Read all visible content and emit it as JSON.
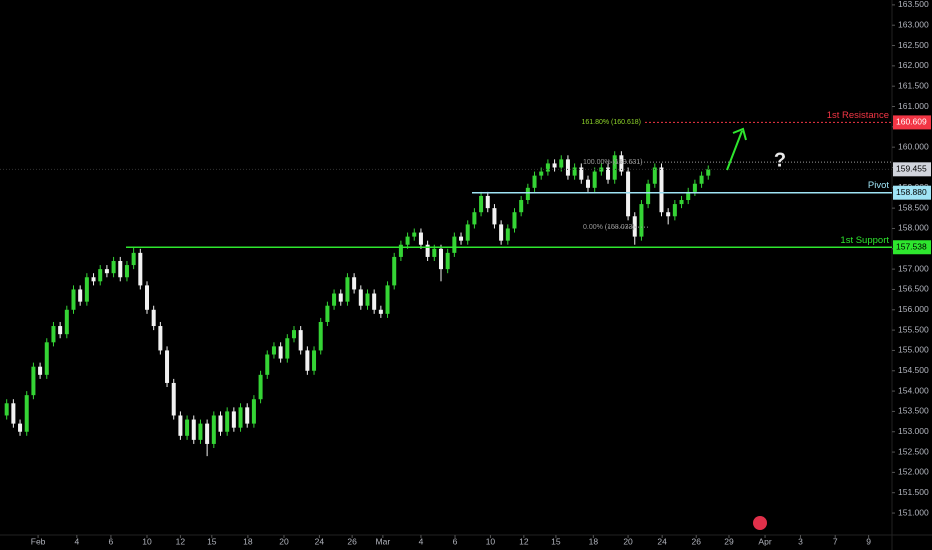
{
  "chart_data": {
    "type": "candlestick",
    "up_color": "#35d435",
    "down_color": "#f2f2f2",
    "open": [
      153.4,
      153.7,
      153.2,
      153.0,
      153.9,
      154.6,
      154.4,
      155.2,
      155.6,
      155.4,
      156.0,
      156.5,
      156.2,
      156.8,
      156.7,
      157.0,
      156.9,
      157.2,
      156.8,
      157.1,
      157.4,
      156.6,
      156.0,
      155.6,
      155.0,
      154.2,
      153.4,
      152.9,
      153.3,
      152.8,
      153.2,
      152.7,
      153.4,
      153.0,
      153.5,
      153.1,
      153.6,
      153.2,
      153.8,
      154.4,
      154.9,
      155.1,
      154.8,
      155.3,
      155.5,
      155.0,
      154.5,
      155.0,
      155.7,
      156.1,
      156.4,
      156.2,
      156.8,
      156.5,
      156.1,
      156.4,
      156.0,
      155.9,
      156.6,
      157.3,
      157.6,
      157.8,
      157.9,
      157.6,
      157.3,
      157.5,
      157.0,
      157.4,
      157.8,
      157.7,
      158.1,
      158.4,
      158.8,
      158.5,
      158.1,
      157.7,
      158.0,
      158.4,
      158.7,
      159.0,
      159.3,
      159.4,
      159.6,
      159.5,
      159.7,
      159.3,
      159.5,
      159.2,
      159.0,
      159.4,
      159.5,
      159.2,
      159.8,
      159.4,
      158.3,
      157.8,
      158.6,
      159.1,
      159.5,
      158.4,
      158.3,
      158.6,
      158.7,
      158.9,
      159.1,
      159.3
    ],
    "high": [
      153.8,
      153.8,
      153.3,
      154.0,
      154.7,
      154.7,
      155.3,
      155.7,
      155.7,
      156.1,
      156.6,
      156.6,
      156.9,
      156.9,
      157.1,
      157.1,
      157.3,
      157.3,
      157.2,
      157.54,
      157.5,
      156.7,
      156.1,
      155.7,
      155.1,
      154.3,
      153.5,
      153.4,
      153.4,
      153.3,
      153.3,
      153.5,
      153.5,
      153.6,
      153.6,
      153.7,
      153.7,
      153.9,
      154.5,
      155.0,
      155.2,
      155.2,
      155.4,
      155.6,
      155.6,
      155.1,
      155.1,
      155.8,
      156.2,
      156.5,
      156.5,
      156.9,
      156.9,
      156.6,
      156.5,
      156.5,
      156.1,
      156.7,
      157.4,
      157.7,
      157.9,
      158.0,
      158.0,
      157.7,
      157.6,
      157.6,
      157.5,
      157.9,
      157.9,
      158.2,
      158.5,
      158.9,
      158.9,
      158.6,
      158.2,
      158.1,
      158.5,
      158.8,
      159.1,
      159.4,
      159.5,
      159.7,
      159.7,
      159.8,
      159.8,
      159.6,
      159.6,
      159.3,
      159.5,
      159.6,
      159.6,
      159.9,
      159.9,
      159.5,
      158.4,
      158.7,
      159.2,
      159.6,
      159.6,
      158.5,
      158.7,
      158.8,
      159.0,
      159.2,
      159.4,
      159.55
    ],
    "low": [
      153.3,
      153.1,
      152.9,
      152.9,
      153.8,
      154.3,
      154.3,
      155.1,
      155.3,
      155.3,
      155.9,
      156.1,
      156.1,
      156.6,
      156.6,
      156.8,
      156.8,
      156.7,
      156.7,
      157.0,
      156.5,
      155.9,
      155.5,
      154.9,
      154.1,
      153.3,
      152.8,
      152.8,
      152.7,
      152.7,
      152.4,
      152.6,
      152.9,
      152.9,
      153.0,
      153.0,
      153.1,
      153.1,
      153.7,
      154.3,
      154.8,
      154.7,
      154.7,
      155.2,
      154.9,
      154.4,
      154.4,
      154.9,
      155.6,
      156.0,
      156.1,
      156.1,
      156.4,
      156.0,
      156.0,
      155.9,
      155.8,
      155.8,
      156.5,
      157.2,
      157.5,
      157.7,
      157.5,
      157.2,
      157.2,
      156.7,
      156.9,
      157.3,
      157.6,
      157.6,
      158.0,
      158.3,
      158.4,
      158.0,
      157.6,
      157.6,
      157.9,
      158.3,
      158.6,
      158.9,
      159.2,
      159.3,
      159.4,
      159.4,
      159.2,
      159.2,
      159.1,
      158.9,
      158.9,
      159.3,
      159.1,
      159.1,
      159.3,
      158.2,
      157.6,
      157.7,
      158.5,
      159.0,
      158.3,
      158.1,
      158.2,
      158.5,
      158.6,
      158.8,
      159.0,
      159.2
    ],
    "close": [
      153.7,
      153.2,
      153.0,
      153.9,
      154.6,
      154.4,
      155.2,
      155.6,
      155.4,
      156.0,
      156.5,
      156.2,
      156.8,
      156.7,
      157.0,
      156.9,
      157.2,
      156.8,
      157.1,
      157.4,
      156.6,
      156.0,
      155.6,
      155.0,
      154.2,
      153.4,
      152.9,
      153.3,
      152.8,
      153.2,
      152.7,
      153.4,
      153.0,
      153.5,
      153.1,
      153.6,
      153.2,
      153.8,
      154.4,
      154.9,
      155.1,
      154.8,
      155.3,
      155.5,
      155.0,
      154.5,
      155.0,
      155.7,
      156.1,
      156.4,
      156.2,
      156.8,
      156.5,
      156.1,
      156.4,
      156.0,
      155.9,
      156.6,
      157.3,
      157.6,
      157.8,
      157.9,
      157.6,
      157.3,
      157.5,
      157.0,
      157.4,
      157.8,
      157.7,
      158.1,
      158.4,
      158.8,
      158.5,
      158.1,
      157.7,
      158.0,
      158.4,
      158.7,
      159.0,
      159.3,
      159.4,
      159.6,
      159.5,
      159.7,
      159.3,
      159.5,
      159.2,
      159.0,
      159.4,
      159.5,
      159.2,
      159.8,
      159.4,
      158.3,
      157.8,
      158.6,
      159.1,
      159.5,
      158.4,
      158.3,
      158.6,
      158.7,
      158.9,
      159.1,
      159.3,
      159.455
    ],
    "xlim": [
      -1,
      132.5
    ],
    "xticks": [
      {
        "value": 4.7,
        "label": "Feb"
      },
      {
        "value": 10.5,
        "label": "4"
      },
      {
        "value": 15.6,
        "label": "6"
      },
      {
        "value": 21,
        "label": "10"
      },
      {
        "value": 26,
        "label": "12"
      },
      {
        "value": 30.7,
        "label": "15"
      },
      {
        "value": 36.1,
        "label": "18"
      },
      {
        "value": 41.5,
        "label": "20"
      },
      {
        "value": 46.8,
        "label": "24"
      },
      {
        "value": 51.7,
        "label": "26"
      },
      {
        "value": 56.3,
        "label": "Mar"
      },
      {
        "value": 62,
        "label": "4"
      },
      {
        "value": 67.1,
        "label": "6"
      },
      {
        "value": 72.4,
        "label": "10"
      },
      {
        "value": 77.4,
        "label": "12"
      },
      {
        "value": 82.2,
        "label": "15"
      },
      {
        "value": 87.8,
        "label": "18"
      },
      {
        "value": 93,
        "label": "20"
      },
      {
        "value": 98.1,
        "label": "24"
      },
      {
        "value": 103.2,
        "label": "26"
      },
      {
        "value": 108.1,
        "label": "29"
      },
      {
        "value": 113.5,
        "label": "Apr"
      },
      {
        "value": 118.8,
        "label": "3"
      },
      {
        "value": 124,
        "label": "7"
      },
      {
        "value": 129,
        "label": "9"
      }
    ],
    "ylim": [
      150.46,
      163.62
    ],
    "yticks": [
      {
        "value": 151,
        "label": "151.000"
      },
      {
        "value": 151.5,
        "label": "151.500"
      },
      {
        "value": 152,
        "label": "152.000"
      },
      {
        "value": 152.5,
        "label": "152.500"
      },
      {
        "value": 153,
        "label": "153.000"
      },
      {
        "value": 153.5,
        "label": "153.500"
      },
      {
        "value": 154,
        "label": "154.000"
      },
      {
        "value": 154.5,
        "label": "154.500"
      },
      {
        "value": 155,
        "label": "155.000"
      },
      {
        "value": 155.5,
        "label": "155.500"
      },
      {
        "value": 156,
        "label": "156.000"
      },
      {
        "value": 156.5,
        "label": "156.500"
      },
      {
        "value": 157,
        "label": "157.000"
      },
      {
        "value": 157.5,
        "label": "157.500"
      },
      {
        "value": 158,
        "label": "158.000"
      },
      {
        "value": 158.5,
        "label": "158.500"
      },
      {
        "value": 159,
        "label": "159.000"
      },
      {
        "value": 159.5,
        "label": "159.500"
      },
      {
        "value": 160,
        "label": "160.000"
      },
      {
        "value": 160.5,
        "label": "160.500"
      },
      {
        "value": 161,
        "label": "161.000"
      },
      {
        "value": 161.5,
        "label": "161.500"
      },
      {
        "value": 162,
        "label": "162.000"
      },
      {
        "value": 162.5,
        "label": "162.500"
      },
      {
        "value": 163,
        "label": "163.000"
      },
      {
        "value": 163.5,
        "label": "163.500"
      }
    ],
    "last_price": {
      "value": 159.455,
      "label": "159.455",
      "color": "#d1d4dc"
    },
    "levels": [
      {
        "name": "1st Resistance",
        "value": 160.609,
        "label": "160.609",
        "color": "#f23645"
      },
      {
        "name": "Pivot",
        "value": 158.88,
        "label": "158.880",
        "color": "#9fe3f5"
      },
      {
        "name": "1st Support",
        "value": 157.538,
        "label": "157.538",
        "color": "#2ee62e"
      }
    ],
    "fib": [
      {
        "label": "161.80% (160.618)",
        "value": 160.618,
        "color": "#8fd62a"
      },
      {
        "label": "100.00% (159.631)",
        "value": 159.631,
        "color": "#9a9a9a"
      },
      {
        "label": "0.00% (158.033)",
        "value": 158.033,
        "color": "#9a9a9a"
      }
    ]
  }
}
